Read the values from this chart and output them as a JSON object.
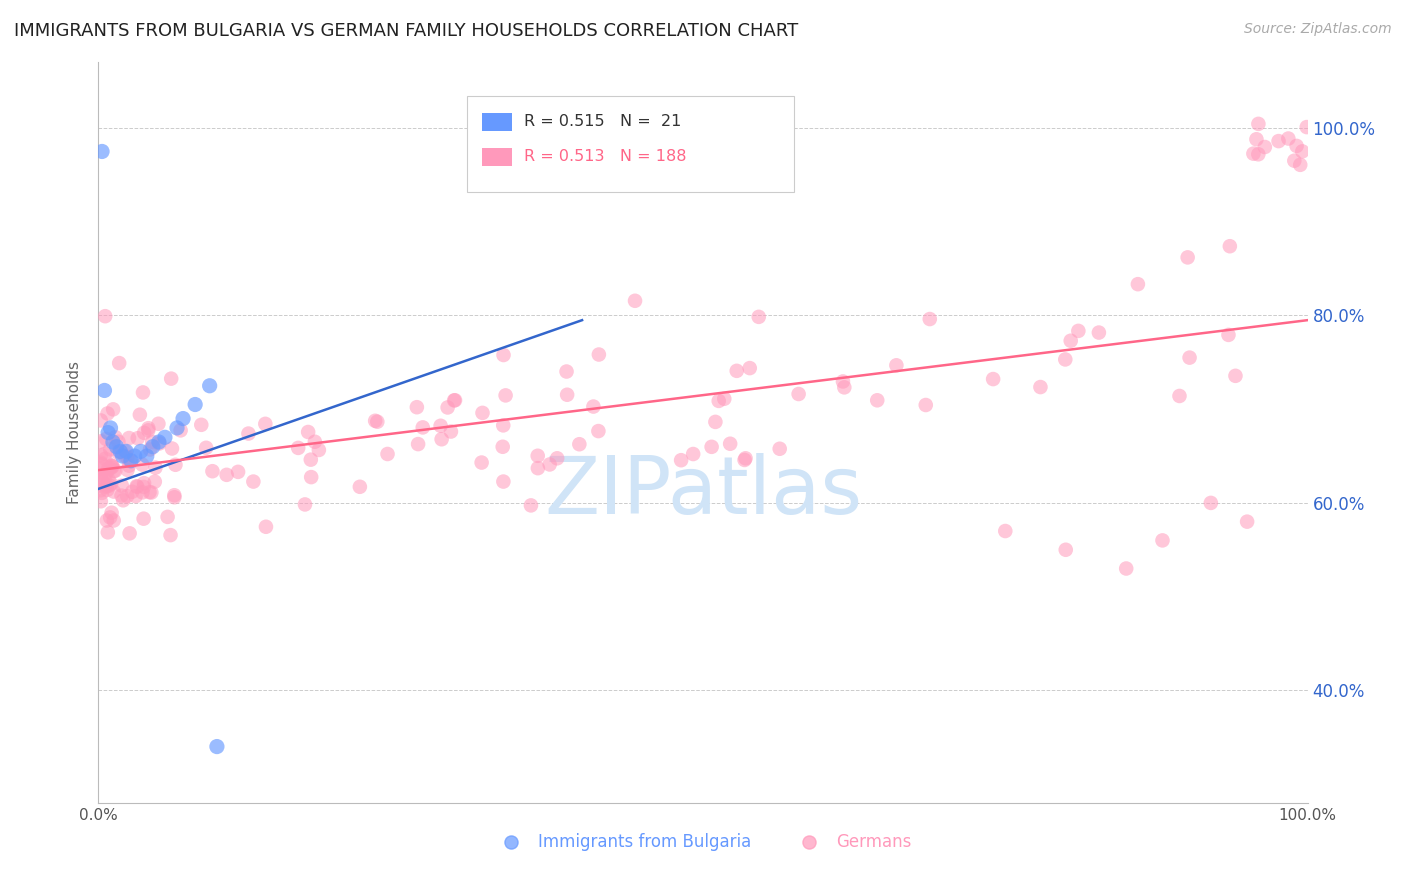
{
  "title": "IMMIGRANTS FROM BULGARIA VS GERMAN FAMILY HOUSEHOLDS CORRELATION CHART",
  "source": "Source: ZipAtlas.com",
  "ylabel": "Family Households",
  "watermark": "ZIPatlas",
  "legend_blue_label": "Immigrants from Bulgaria",
  "legend_pink_label": "Germans",
  "blue_R": 0.515,
  "blue_N": 21,
  "pink_R": 0.513,
  "pink_N": 188,
  "blue_color": "#6699FF",
  "pink_color": "#FF99BB",
  "blue_line_color": "#3366CC",
  "pink_line_color": "#FF6688",
  "grid_color": "#CCCCCC",
  "title_color": "#222222",
  "right_axis_color": "#3366CC",
  "bg_color": "#FFFFFF",
  "watermark_color": "#D0E4F7",
  "blue_x": [
    0.3,
    0.5,
    0.8,
    1.0,
    1.2,
    1.5,
    1.8,
    2.0,
    2.3,
    2.7,
    3.0,
    3.5,
    4.0,
    4.5,
    5.0,
    5.5,
    6.5,
    7.0,
    8.0,
    9.2,
    9.8
  ],
  "blue_y": [
    97.5,
    72.0,
    67.5,
    68.0,
    66.5,
    66.0,
    65.5,
    65.0,
    65.5,
    64.5,
    65.0,
    65.5,
    65.0,
    66.0,
    66.5,
    67.0,
    68.0,
    69.0,
    70.5,
    72.5,
    34.0
  ],
  "blue_line_x0": 0.0,
  "blue_line_x1": 40.0,
  "blue_line_y0": 61.5,
  "blue_line_y1": 79.5,
  "pink_line_x0": 0.0,
  "pink_line_x1": 100.0,
  "pink_line_y0": 63.5,
  "pink_line_y1": 79.5,
  "xlim": [
    0,
    100
  ],
  "ylim": [
    28,
    107
  ],
  "yticks": [
    40,
    60,
    80,
    100
  ],
  "ytick_labels": [
    "40.0%",
    "60.0%",
    "80.0%",
    "100.0%"
  ],
  "xtick_positions": [
    0,
    20,
    40,
    60,
    80,
    100
  ],
  "xtick_labels": [
    "0.0%",
    "",
    "",
    "",
    "",
    "100.0%"
  ]
}
